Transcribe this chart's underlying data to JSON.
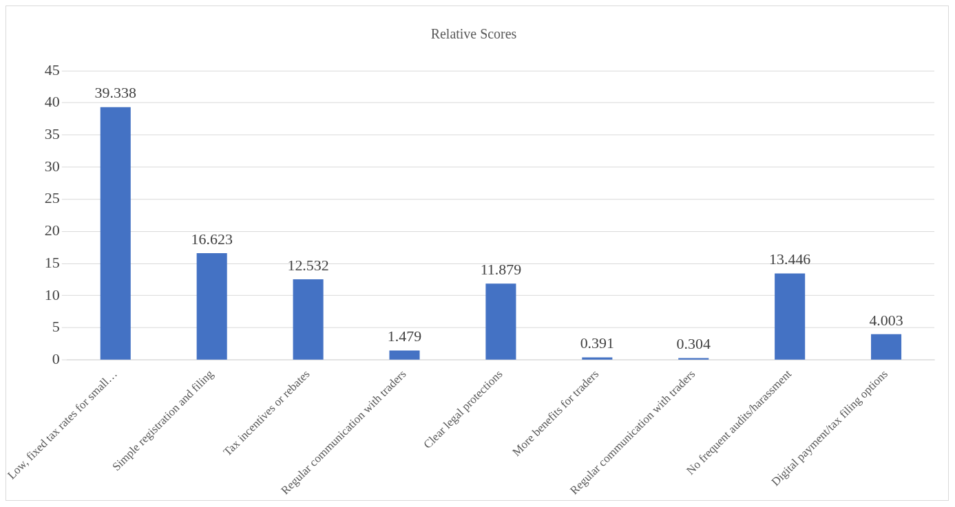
{
  "chart_data": {
    "type": "bar",
    "title": "Relative Scores",
    "categories": [
      "Low, fixed tax rates for small…",
      "Simple registration and filing",
      "Tax incentives or rebates",
      "Regular communication with traders",
      "Clear legal protections",
      "More benefits for traders",
      "Regular communication with traders",
      "No frequent audits/harassment",
      "Digital payment/tax filing options"
    ],
    "values": [
      39.338,
      16.623,
      12.532,
      1.479,
      11.879,
      0.391,
      0.304,
      13.446,
      4.003
    ],
    "color": "#4472c4",
    "ylim": [
      0,
      45
    ],
    "yticks": [
      0,
      5,
      10,
      15,
      20,
      25,
      30,
      35,
      40,
      45
    ],
    "grid": "y",
    "data_labels": true,
    "legend": false
  }
}
